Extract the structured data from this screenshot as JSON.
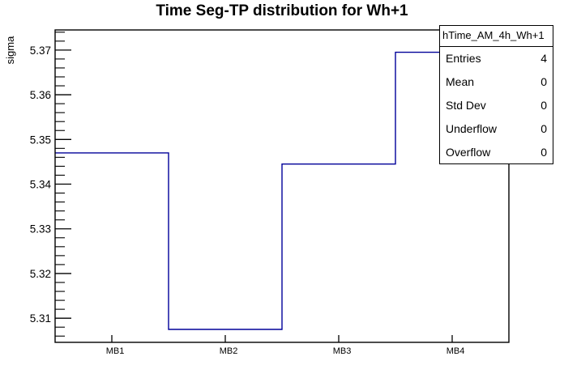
{
  "title": "Time Seg-TP distribution for Wh+1",
  "colors": {
    "background": "#ffffff",
    "frame": "#000000",
    "hist_line": "#000099",
    "text": "#000000"
  },
  "stats_box": {
    "header": "hTime_AM_4h_Wh+1",
    "rows": [
      {
        "label": "Entries",
        "value": "4"
      },
      {
        "label": "Mean",
        "value": "0"
      },
      {
        "label": "Std Dev",
        "value": "0"
      },
      {
        "label": "Underflow",
        "value": "0"
      },
      {
        "label": "Overflow",
        "value": "0"
      }
    ]
  },
  "chart_data": {
    "type": "line",
    "style": "step-histogram",
    "title": "Time Seg-TP distribution for Wh+1",
    "xlabel": "",
    "ylabel": "sigma",
    "categories": [
      "MB1",
      "MB2",
      "MB3",
      "MB4"
    ],
    "values": [
      5.347,
      5.3075,
      5.3445,
      5.3695
    ],
    "ylim": [
      5.3046,
      5.3745
    ],
    "yticks": [
      5.31,
      5.32,
      5.33,
      5.34,
      5.35,
      5.36,
      5.37
    ],
    "y_minor_step": 0.002,
    "ytick_format_decimals": 2,
    "grid": false,
    "legend_position": "none"
  }
}
